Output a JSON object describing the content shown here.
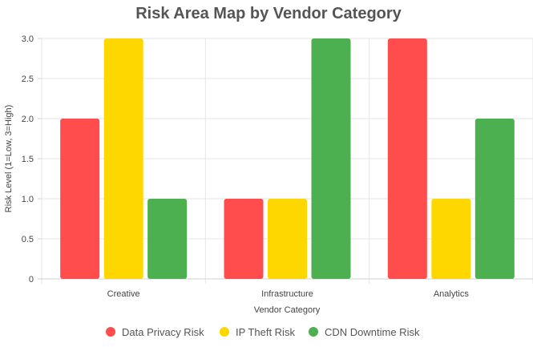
{
  "chart_data": {
    "type": "bar",
    "title": "Risk Area Map by Vendor Category",
    "xlabel": "Vendor Category",
    "ylabel": "Risk Level (1=Low, 3=High)",
    "categories": [
      "Creative",
      "Infrastructure",
      "Analytics"
    ],
    "series": [
      {
        "name": "Data Privacy Risk",
        "color": "#ff4d4d",
        "values": [
          2,
          1,
          3
        ]
      },
      {
        "name": "IP Theft Risk",
        "color": "#ffd700",
        "values": [
          3,
          1,
          1
        ]
      },
      {
        "name": "CDN Downtime Risk",
        "color": "#4caf50",
        "values": [
          1,
          3,
          2
        ]
      }
    ],
    "ylim": [
      0,
      3
    ],
    "yticks": [
      0,
      0.5,
      1.0,
      1.5,
      2.0,
      2.5,
      3.0
    ],
    "ytick_labels": [
      "0",
      "0.5",
      "1.0",
      "1.5",
      "2.0",
      "2.5",
      "3.0"
    ],
    "grid": true,
    "legend_position": "bottom"
  }
}
